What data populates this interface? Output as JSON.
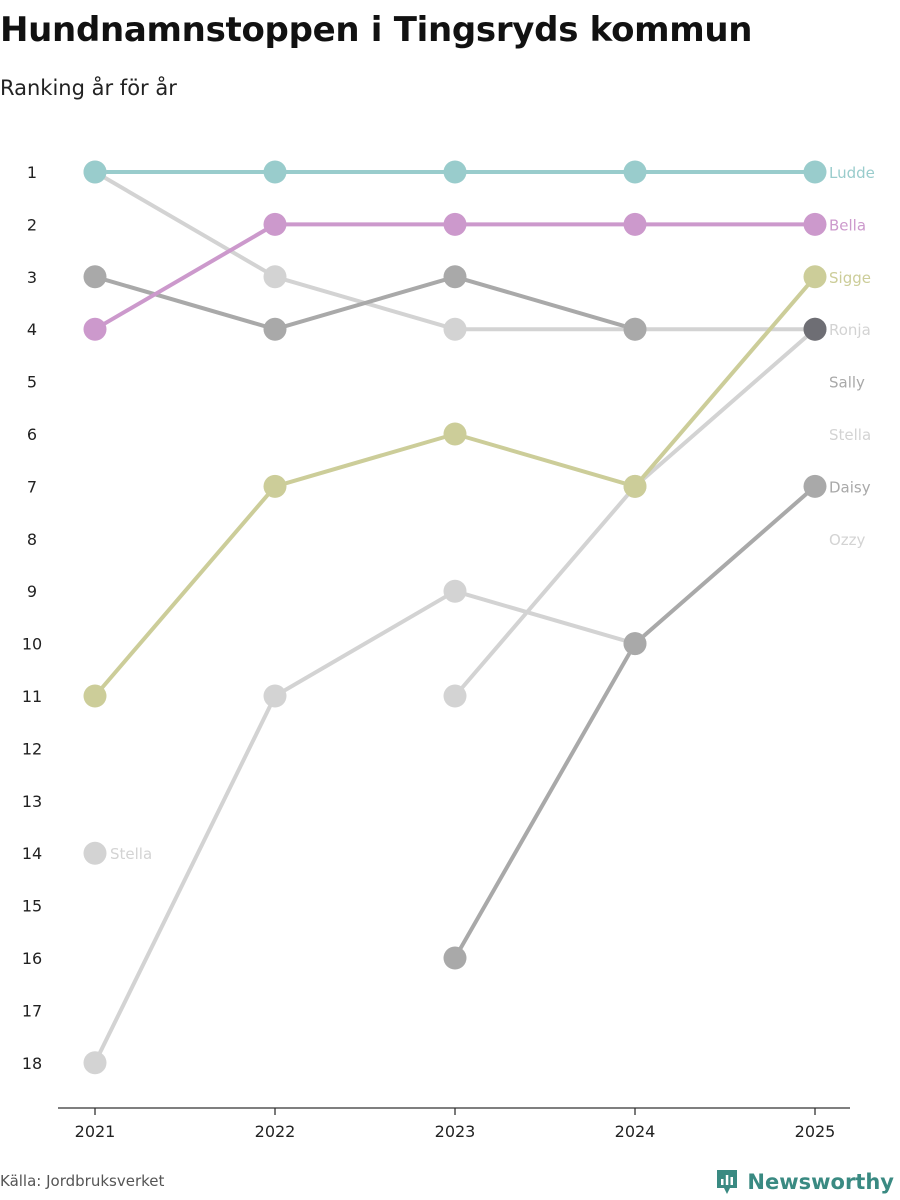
{
  "header": {
    "title": "Hundnamnstoppen i Tingsryds kommun",
    "subtitle": "Ranking år för år"
  },
  "footer": {
    "source": "Källa: Jordbruksverket",
    "brand": "Newsworthy",
    "brand_color": "#3a8a82"
  },
  "chart_data": {
    "type": "line",
    "title": "Hundnamnstoppen i Tingsryds kommun",
    "subtitle": "Ranking år för år",
    "xlabel": "",
    "ylabel": "",
    "categories": [
      "2021",
      "2022",
      "2023",
      "2024",
      "2025"
    ],
    "y_ticks": [
      "1",
      "2",
      "3",
      "4",
      "5",
      "6",
      "7",
      "8",
      "9",
      "10",
      "11",
      "12",
      "13",
      "14",
      "15",
      "16",
      "17",
      "18"
    ],
    "ylim": [
      1,
      18
    ],
    "y_inverted": true,
    "grid": false,
    "series": [
      {
        "name": "Ozzy",
        "color": "#d3d3d3",
        "values": [
          18,
          11,
          9,
          10,
          null
        ]
      },
      {
        "name": "Stella",
        "color": "#d3d3d3",
        "values": [
          14,
          null,
          11,
          7,
          4
        ]
      },
      {
        "name": "Ronja",
        "color": "#d3d3d3",
        "values": [
          1,
          3,
          4,
          4,
          4
        ]
      },
      {
        "name": "Daisy",
        "color": "#a9a9a9",
        "values": [
          null,
          null,
          16,
          10,
          7
        ]
      },
      {
        "name": "Sally",
        "color": "#a9a9a9",
        "values": [
          3,
          4,
          3,
          4,
          null
        ]
      },
      {
        "name": "Sigge",
        "color": "#cccd99",
        "values": [
          11,
          7,
          6,
          7,
          3
        ]
      },
      {
        "name": "Bella",
        "color": "#cc99cc",
        "values": [
          4,
          2,
          2,
          2,
          2
        ]
      },
      {
        "name": "Ludde",
        "color": "#99cccc",
        "values": [
          1,
          1,
          1,
          1,
          1
        ]
      }
    ],
    "end_labels": [
      {
        "text": "Ludde",
        "rank": 1,
        "color": "#99cccc"
      },
      {
        "text": "Bella",
        "rank": 2,
        "color": "#cc99cc"
      },
      {
        "text": "Sigge",
        "rank": 3,
        "color": "#cccd99"
      },
      {
        "text": "Ronja",
        "rank": 4,
        "color": "#d3d3d3"
      },
      {
        "text": "Sally",
        "rank": 5,
        "color": "#a9a9a9"
      },
      {
        "text": "Stella",
        "rank": 6,
        "color": "#d3d3d3"
      },
      {
        "text": "Daisy",
        "rank": 7,
        "color": "#a9a9a9"
      },
      {
        "text": "Ozzy",
        "rank": 8,
        "color": "#d3d3d3"
      }
    ],
    "annotations": [
      {
        "text": "Stella",
        "year": "2021",
        "rank": 14,
        "color": "#d3d3d3"
      }
    ],
    "highlight_marker": {
      "year": "2025",
      "rank": 4,
      "color": "#6e6e74"
    }
  }
}
